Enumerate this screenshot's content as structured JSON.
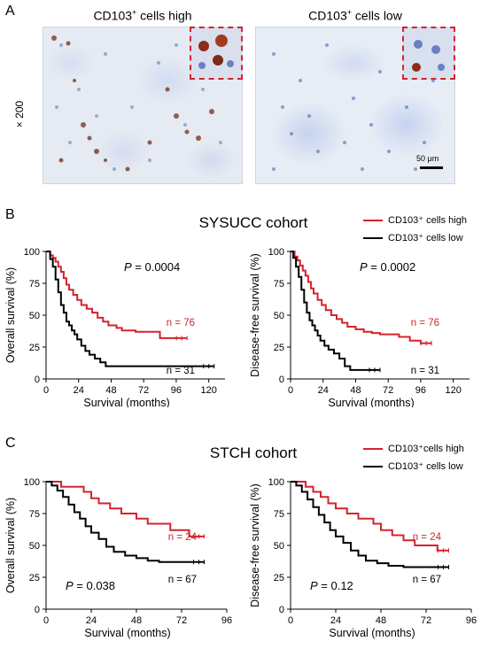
{
  "panelA": {
    "letter": "A",
    "magnification": "× 200",
    "left_title_base": "CD103",
    "left_title_sup": "+",
    "left_title_rest": " cells high",
    "right_title_base": "CD103",
    "right_title_sup": "+",
    "right_title_rest": " cells low",
    "scale_bar_label": "50 μm"
  },
  "panelB": {
    "letter": "B",
    "cohort": "SYSUCC cohort",
    "legend_high": "CD103⁺ cells high",
    "legend_low": "CD103⁺ cells low"
  },
  "panelC": {
    "letter": "C",
    "cohort": "STCH cohort",
    "legend_high": "CD103⁺cells high",
    "legend_low": "CD103⁺ cells low"
  },
  "colors": {
    "high": "#d4232e",
    "low": "#000000"
  },
  "chart_data": [
    {
      "type": "line",
      "id": "B-OS",
      "xlabel": "Survival (months)",
      "ylabel": "Overall survival (%)",
      "xlim": [
        0,
        132
      ],
      "ylim": [
        0,
        100
      ],
      "xticks": [
        0,
        24,
        48,
        72,
        96,
        120
      ],
      "yticks": [
        0,
        25,
        50,
        75,
        100
      ],
      "p_label": "P",
      "p_value": "= 0.0004",
      "n_high": "n = 76",
      "n_low": "n = 31",
      "series": [
        {
          "name": "CD103⁺ cells high",
          "color": "#d4232e",
          "x": [
            0,
            3,
            5,
            7,
            9,
            11,
            13,
            15,
            17,
            20,
            23,
            26,
            30,
            34,
            38,
            42,
            46,
            52,
            56,
            60,
            66,
            72,
            84,
            90,
            104
          ],
          "y": [
            100,
            97,
            95,
            92,
            88,
            84,
            79,
            74,
            70,
            66,
            62,
            58,
            55,
            52,
            48,
            45,
            42,
            40,
            38,
            38,
            37,
            37,
            32,
            32,
            32
          ]
        },
        {
          "name": "CD103⁺ cells low",
          "color": "#000000",
          "x": [
            0,
            3,
            5,
            7,
            9,
            11,
            13,
            15,
            17,
            19,
            21,
            23,
            26,
            29,
            32,
            36,
            40,
            44,
            80,
            100,
            124
          ],
          "y": [
            100,
            94,
            88,
            78,
            68,
            58,
            52,
            45,
            42,
            38,
            35,
            31,
            26,
            22,
            19,
            16,
            13,
            10,
            10,
            10,
            10
          ]
        }
      ]
    },
    {
      "type": "line",
      "id": "B-DFS",
      "xlabel": "Survival (months)",
      "ylabel": "Disease-free survival (%)",
      "xlim": [
        0,
        132
      ],
      "ylim": [
        0,
        100
      ],
      "xticks": [
        0,
        24,
        48,
        72,
        96,
        120
      ],
      "yticks": [
        0,
        25,
        50,
        75,
        100
      ],
      "p_label": "P",
      "p_value": "= 0.0002",
      "n_high": "n = 76",
      "n_low": "n = 31",
      "series": [
        {
          "name": "CD103⁺ cells high",
          "color": "#d4232e",
          "x": [
            0,
            3,
            5,
            7,
            9,
            11,
            13,
            15,
            17,
            20,
            23,
            26,
            30,
            34,
            38,
            42,
            48,
            54,
            60,
            66,
            72,
            80,
            88,
            96,
            104
          ],
          "y": [
            100,
            96,
            93,
            89,
            85,
            81,
            76,
            71,
            67,
            62,
            58,
            54,
            50,
            47,
            44,
            41,
            39,
            37,
            36,
            35,
            35,
            33,
            30,
            28,
            28
          ]
        },
        {
          "name": "CD103⁺ cells low",
          "color": "#000000",
          "x": [
            0,
            2,
            4,
            6,
            8,
            10,
            12,
            14,
            16,
            18,
            20,
            22,
            25,
            28,
            32,
            36,
            40,
            44,
            66
          ],
          "y": [
            100,
            95,
            88,
            80,
            70,
            60,
            52,
            46,
            42,
            38,
            34,
            30,
            26,
            23,
            20,
            16,
            10,
            7,
            7
          ]
        }
      ]
    },
    {
      "type": "line",
      "id": "C-OS",
      "xlabel": "Survival (months)",
      "ylabel": "Overall survival (%)",
      "xlim": [
        0,
        96
      ],
      "ylim": [
        0,
        100
      ],
      "xticks": [
        0,
        24,
        48,
        72,
        96
      ],
      "yticks": [
        0,
        25,
        50,
        75,
        100
      ],
      "p_label": "P",
      "p_value": "= 0.038",
      "n_high": "n = 24",
      "n_low": "n = 67",
      "series": [
        {
          "name": "CD103⁺cells high",
          "color": "#d4232e",
          "x": [
            0,
            8,
            16,
            20,
            24,
            28,
            34,
            40,
            48,
            54,
            60,
            66,
            72,
            76,
            84
          ],
          "y": [
            100,
            96,
            96,
            92,
            87,
            83,
            79,
            75,
            71,
            67,
            67,
            62,
            62,
            57,
            57
          ]
        },
        {
          "name": "CD103⁺ cells low",
          "color": "#000000",
          "x": [
            0,
            3,
            6,
            9,
            12,
            15,
            18,
            21,
            24,
            28,
            32,
            36,
            42,
            48,
            54,
            60,
            72,
            84
          ],
          "y": [
            100,
            97,
            93,
            88,
            82,
            76,
            71,
            65,
            60,
            55,
            49,
            45,
            42,
            40,
            38,
            37,
            37,
            37
          ]
        }
      ]
    },
    {
      "type": "line",
      "id": "C-DFS",
      "xlabel": "Survival (months)",
      "ylabel": "Disease-free survival (%)",
      "xlim": [
        0,
        96
      ],
      "ylim": [
        0,
        100
      ],
      "xticks": [
        0,
        24,
        48,
        72,
        96
      ],
      "yticks": [
        0,
        25,
        50,
        75,
        100
      ],
      "p_label": "P",
      "p_value": "= 0.12",
      "n_high": "n = 24",
      "n_low": "n = 67",
      "series": [
        {
          "name": "CD103⁺cells high",
          "color": "#d4232e",
          "x": [
            0,
            8,
            12,
            16,
            20,
            24,
            30,
            36,
            44,
            48,
            54,
            60,
            66,
            72,
            78,
            84
          ],
          "y": [
            100,
            96,
            92,
            88,
            83,
            79,
            75,
            71,
            67,
            62,
            58,
            54,
            50,
            50,
            46,
            46
          ]
        },
        {
          "name": "CD103⁺ cells low",
          "color": "#000000",
          "x": [
            0,
            3,
            6,
            9,
            12,
            15,
            18,
            21,
            24,
            28,
            32,
            36,
            40,
            46,
            52,
            60,
            72,
            84
          ],
          "y": [
            100,
            97,
            92,
            86,
            80,
            74,
            68,
            62,
            57,
            52,
            46,
            42,
            38,
            36,
            34,
            33,
            33,
            33
          ]
        }
      ]
    }
  ]
}
